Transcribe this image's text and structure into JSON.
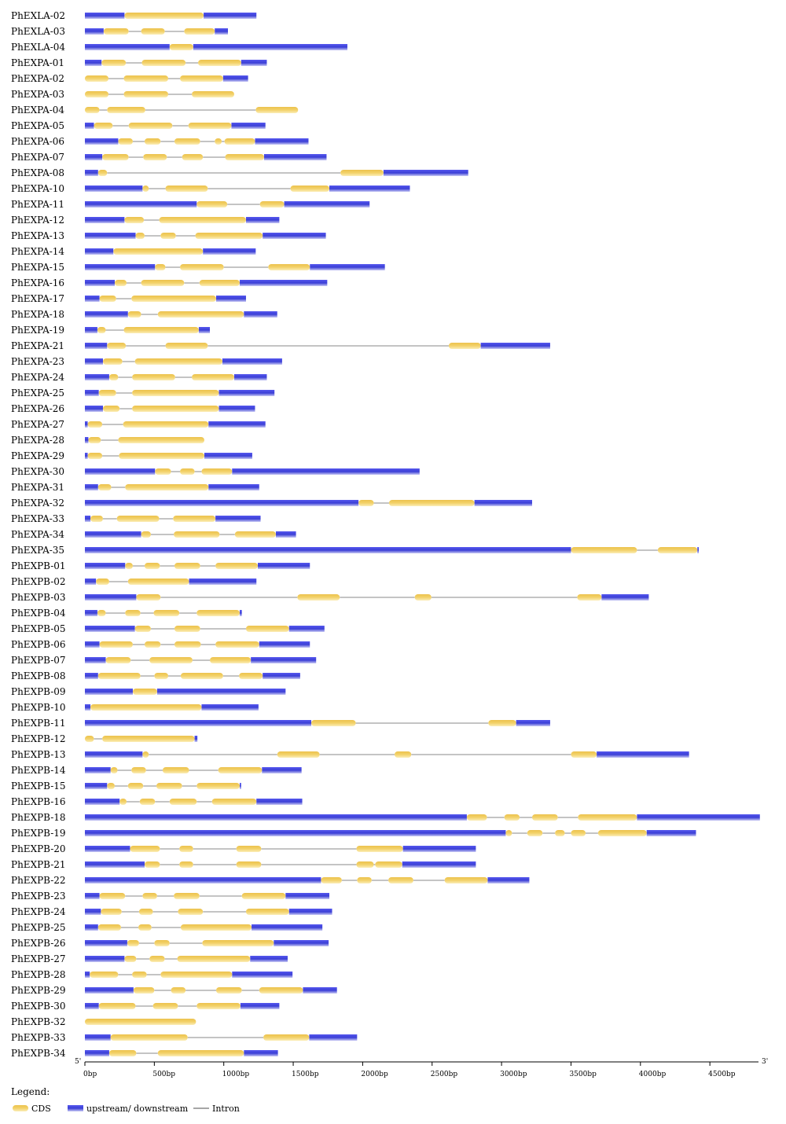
{
  "chart_data": {
    "type": "gene-structure",
    "axis": {
      "unit": "bp",
      "max": 4850,
      "ticks": [
        0,
        500,
        1000,
        1500,
        2000,
        2500,
        3000,
        3500,
        4000,
        4500
      ],
      "tick_labels": [
        "0bp",
        "500bp",
        "1000bp",
        "1500bp",
        "2000bp",
        "2500bp",
        "3000bp",
        "3500bp",
        "4000bp",
        "4500bp"
      ],
      "start_label": "5'",
      "end_label": "3'"
    },
    "legend": {
      "title": "Legend:",
      "items": [
        {
          "label": "CDS",
          "type": "cds"
        },
        {
          "label": "upstream/ downstream",
          "type": "utr"
        },
        {
          "label": "Intron",
          "type": "intron"
        }
      ]
    },
    "colors": {
      "cds": "#f3d26a",
      "utr": "#3b3fd6",
      "intron": "#888888"
    },
    "genes": [
      {
        "name": "PhEXLA-02",
        "length": 1235,
        "cds": [
          [
            285,
            855
          ]
        ]
      },
      {
        "name": "PhEXLA-03",
        "length": 1030,
        "cds": [
          [
            135,
            315
          ],
          [
            405,
            575
          ],
          [
            715,
            935
          ]
        ]
      },
      {
        "name": "PhEXLA-04",
        "length": 1890,
        "cds": [
          [
            610,
            780
          ]
        ]
      },
      {
        "name": "PhEXPA-01",
        "length": 1310,
        "cds": [
          [
            120,
            295
          ],
          [
            410,
            725
          ],
          [
            815,
            1125
          ]
        ]
      },
      {
        "name": "PhEXPA-02",
        "length": 1175,
        "cds": [
          [
            0,
            170
          ],
          [
            280,
            600
          ],
          [
            685,
            995
          ]
        ]
      },
      {
        "name": "PhEXPA-03",
        "length": 1075,
        "cds": [
          [
            0,
            170
          ],
          [
            280,
            600
          ],
          [
            770,
            1075
          ]
        ]
      },
      {
        "name": "PhEXPA-04",
        "length": 1535,
        "cds": [
          [
            0,
            105
          ],
          [
            160,
            435
          ],
          [
            1230,
            1535
          ]
        ]
      },
      {
        "name": "PhEXPA-05",
        "length": 1300,
        "cds": [
          [
            65,
            200
          ],
          [
            315,
            630
          ],
          [
            745,
            1055
          ]
        ]
      },
      {
        "name": "PhEXPA-06",
        "length": 1610,
        "cds": [
          [
            240,
            345
          ],
          [
            430,
            545
          ],
          [
            645,
            830
          ],
          [
            935,
            985
          ],
          [
            1005,
            1225
          ]
        ]
      },
      {
        "name": "PhEXPA-07",
        "length": 1740,
        "cds": [
          [
            125,
            315
          ],
          [
            420,
            590
          ],
          [
            700,
            850
          ],
          [
            1010,
            1290
          ]
        ]
      },
      {
        "name": "PhEXPA-08",
        "length": 2760,
        "cds": [
          [
            95,
            160
          ],
          [
            1840,
            2150
          ]
        ]
      },
      {
        "name": "PhEXPA-10",
        "length": 2340,
        "cds": [
          [
            415,
            460
          ],
          [
            580,
            885
          ],
          [
            1480,
            1760
          ]
        ]
      },
      {
        "name": "PhEXPA-11",
        "length": 2050,
        "cds": [
          [
            805,
            1025
          ],
          [
            1260,
            1435
          ]
        ]
      },
      {
        "name": "PhEXPA-12",
        "length": 1400,
        "cds": [
          [
            285,
            425
          ],
          [
            535,
            1160
          ]
        ]
      },
      {
        "name": "PhEXPA-13",
        "length": 1735,
        "cds": [
          [
            365,
            430
          ],
          [
            545,
            655
          ],
          [
            795,
            1280
          ]
        ]
      },
      {
        "name": "PhEXPA-14",
        "length": 1230,
        "cds": [
          [
            205,
            850
          ]
        ]
      },
      {
        "name": "PhEXPA-15",
        "length": 2160,
        "cds": [
          [
            505,
            580
          ],
          [
            685,
            1000
          ],
          [
            1320,
            1620
          ]
        ]
      },
      {
        "name": "PhEXPA-16",
        "length": 1745,
        "cds": [
          [
            215,
            300
          ],
          [
            405,
            715
          ],
          [
            825,
            1115
          ]
        ]
      },
      {
        "name": "PhEXPA-17",
        "length": 1160,
        "cds": [
          [
            105,
            225
          ],
          [
            335,
            945
          ]
        ]
      },
      {
        "name": "PhEXPA-18",
        "length": 1385,
        "cds": [
          [
            310,
            405
          ],
          [
            525,
            1145
          ]
        ]
      },
      {
        "name": "PhEXPA-19",
        "length": 900,
        "cds": [
          [
            90,
            150
          ],
          [
            280,
            820
          ]
        ]
      },
      {
        "name": "PhEXPA-21",
        "length": 3350,
        "cds": [
          [
            160,
            295
          ],
          [
            580,
            885
          ],
          [
            2620,
            2850
          ]
        ]
      },
      {
        "name": "PhEXPA-23",
        "length": 1420,
        "cds": [
          [
            130,
            270
          ],
          [
            360,
            990
          ]
        ]
      },
      {
        "name": "PhEXPA-24",
        "length": 1310,
        "cds": [
          [
            175,
            240
          ],
          [
            340,
            650
          ],
          [
            770,
            1075
          ]
        ]
      },
      {
        "name": "PhEXPA-25",
        "length": 1365,
        "cds": [
          [
            100,
            225
          ],
          [
            340,
            965
          ]
        ]
      },
      {
        "name": "PhEXPA-26",
        "length": 1225,
        "cds": [
          [
            130,
            250
          ],
          [
            340,
            965
          ]
        ]
      },
      {
        "name": "PhEXPA-27",
        "length": 1300,
        "cds": [
          [
            20,
            125
          ],
          [
            275,
            890
          ]
        ]
      },
      {
        "name": "PhEXPA-28",
        "length": 860,
        "cds": [
          [
            25,
            115
          ],
          [
            240,
            860
          ]
        ]
      },
      {
        "name": "PhEXPA-29",
        "length": 1205,
        "cds": [
          [
            20,
            125
          ],
          [
            245,
            860
          ]
        ]
      },
      {
        "name": "PhEXPA-30",
        "length": 2410,
        "cds": [
          [
            505,
            620
          ],
          [
            685,
            790
          ],
          [
            840,
            1060
          ]
        ]
      },
      {
        "name": "PhEXPA-31",
        "length": 1255,
        "cds": [
          [
            95,
            190
          ],
          [
            290,
            890
          ]
        ]
      },
      {
        "name": "PhEXPA-32",
        "length": 3220,
        "cds": [
          [
            1970,
            2080
          ],
          [
            2190,
            2805
          ]
        ]
      },
      {
        "name": "PhEXPA-33",
        "length": 1265,
        "cds": [
          [
            40,
            130
          ],
          [
            230,
            535
          ],
          [
            635,
            940
          ]
        ]
      },
      {
        "name": "PhEXPA-34",
        "length": 1520,
        "cds": [
          [
            405,
            475
          ],
          [
            640,
            970
          ],
          [
            1080,
            1375
          ]
        ]
      },
      {
        "name": "PhEXPA-35",
        "length": 4420,
        "cds": [
          [
            3500,
            3975
          ],
          [
            4125,
            4410
          ]
        ]
      },
      {
        "name": "PhEXPB-01",
        "length": 1620,
        "cds": [
          [
            290,
            345
          ],
          [
            430,
            540
          ],
          [
            645,
            830
          ],
          [
            940,
            1245
          ]
        ]
      },
      {
        "name": "PhEXPB-02",
        "length": 1235,
        "cds": [
          [
            80,
            175
          ],
          [
            310,
            750
          ]
        ]
      },
      {
        "name": "PhEXPB-03",
        "length": 4060,
        "cds": [
          [
            370,
            545
          ],
          [
            1530,
            1835
          ],
          [
            2375,
            2495
          ],
          [
            3545,
            3720
          ]
        ]
      },
      {
        "name": "PhEXPB-04",
        "length": 1130,
        "cds": [
          [
            90,
            150
          ],
          [
            290,
            400
          ],
          [
            495,
            680
          ],
          [
            805,
            1115
          ]
        ]
      },
      {
        "name": "PhEXPB-05",
        "length": 1725,
        "cds": [
          [
            360,
            475
          ],
          [
            645,
            830
          ],
          [
            1160,
            1470
          ]
        ]
      },
      {
        "name": "PhEXPB-06",
        "length": 1620,
        "cds": [
          [
            105,
            345
          ],
          [
            430,
            545
          ],
          [
            645,
            835
          ],
          [
            940,
            1255
          ]
        ]
      },
      {
        "name": "PhEXPB-07",
        "length": 1665,
        "cds": [
          [
            150,
            330
          ],
          [
            465,
            775
          ],
          [
            900,
            1195
          ]
        ]
      },
      {
        "name": "PhEXPB-08",
        "length": 1550,
        "cds": [
          [
            95,
            400
          ],
          [
            500,
            600
          ],
          [
            690,
            995
          ],
          [
            1110,
            1280
          ]
        ]
      },
      {
        "name": "PhEXPB-09",
        "length": 1445,
        "cds": [
          [
            345,
            520
          ]
        ]
      },
      {
        "name": "PhEXPB-10",
        "length": 1250,
        "cds": [
          [
            40,
            840
          ]
        ]
      },
      {
        "name": "PhEXPB-11",
        "length": 3350,
        "cds": [
          [
            1630,
            1950
          ],
          [
            2905,
            3105
          ]
        ]
      },
      {
        "name": "PhEXPB-12",
        "length": 810,
        "cds": [
          [
            0,
            65
          ],
          [
            125,
            790
          ]
        ]
      },
      {
        "name": "PhEXPB-13",
        "length": 4350,
        "cds": [
          [
            415,
            460
          ],
          [
            1385,
            1690
          ],
          [
            2230,
            2350
          ],
          [
            3500,
            3685
          ]
        ]
      },
      {
        "name": "PhEXPB-14",
        "length": 1560,
        "cds": [
          [
            185,
            235
          ],
          [
            335,
            440
          ],
          [
            560,
            750
          ],
          [
            960,
            1275
          ]
        ]
      },
      {
        "name": "PhEXPB-15",
        "length": 1125,
        "cds": [
          [
            160,
            215
          ],
          [
            310,
            420
          ],
          [
            515,
            700
          ],
          [
            805,
            1115
          ]
        ]
      },
      {
        "name": "PhEXPB-16",
        "length": 1565,
        "cds": [
          [
            250,
            300
          ],
          [
            395,
            505
          ],
          [
            610,
            805
          ],
          [
            915,
            1235
          ]
        ]
      },
      {
        "name": "PhEXPB-18",
        "length": 4860,
        "cds": [
          [
            2750,
            2895
          ],
          [
            3020,
            3130
          ],
          [
            3220,
            3405
          ],
          [
            3550,
            3975
          ]
        ]
      },
      {
        "name": "PhEXPB-19",
        "length": 4400,
        "cds": [
          [
            3030,
            3075
          ],
          [
            3185,
            3295
          ],
          [
            3385,
            3455
          ],
          [
            3500,
            3605
          ],
          [
            3695,
            4045
          ]
        ]
      },
      {
        "name": "PhEXPB-20",
        "length": 2815,
        "cds": [
          [
            325,
            540
          ],
          [
            680,
            780
          ],
          [
            1090,
            1270
          ],
          [
            1955,
            2290
          ]
        ]
      },
      {
        "name": "PhEXPB-21",
        "length": 2815,
        "cds": [
          [
            430,
            540
          ],
          [
            680,
            780
          ],
          [
            1090,
            1270
          ],
          [
            1955,
            2080
          ],
          [
            2090,
            2285
          ]
        ]
      },
      {
        "name": "PhEXPB-22",
        "length": 3200,
        "cds": [
          [
            1700,
            1850
          ],
          [
            1960,
            2065
          ],
          [
            2185,
            2365
          ],
          [
            2590,
            2900
          ]
        ]
      },
      {
        "name": "PhEXPB-23",
        "length": 1760,
        "cds": [
          [
            105,
            290
          ],
          [
            415,
            520
          ],
          [
            640,
            825
          ],
          [
            1130,
            1445
          ]
        ]
      },
      {
        "name": "PhEXPB-24",
        "length": 1780,
        "cds": [
          [
            115,
            265
          ],
          [
            390,
            490
          ],
          [
            670,
            850
          ],
          [
            1160,
            1470
          ]
        ]
      },
      {
        "name": "PhEXPB-25",
        "length": 1710,
        "cds": [
          [
            95,
            260
          ],
          [
            385,
            480
          ],
          [
            690,
            1200
          ]
        ]
      },
      {
        "name": "PhEXPB-26",
        "length": 1755,
        "cds": [
          [
            305,
            390
          ],
          [
            500,
            610
          ],
          [
            845,
            1360
          ]
        ]
      },
      {
        "name": "PhEXPB-27",
        "length": 1460,
        "cds": [
          [
            285,
            370
          ],
          [
            465,
            575
          ],
          [
            665,
            1190
          ]
        ]
      },
      {
        "name": "PhEXPB-28",
        "length": 1495,
        "cds": [
          [
            35,
            240
          ],
          [
            340,
            445
          ],
          [
            545,
            1060
          ]
        ]
      },
      {
        "name": "PhEXPB-29",
        "length": 1815,
        "cds": [
          [
            350,
            500
          ],
          [
            620,
            725
          ],
          [
            945,
            1130
          ],
          [
            1255,
            1570
          ]
        ]
      },
      {
        "name": "PhEXPB-30",
        "length": 1400,
        "cds": [
          [
            100,
            365
          ],
          [
            490,
            670
          ],
          [
            805,
            1120
          ]
        ]
      },
      {
        "name": "PhEXPB-32",
        "length": 800,
        "cds": [
          [
            0,
            800
          ]
        ]
      },
      {
        "name": "PhEXPB-33",
        "length": 1960,
        "cds": [
          [
            185,
            740
          ],
          [
            1285,
            1615
          ]
        ]
      },
      {
        "name": "PhEXPB-34",
        "length": 1390,
        "cds": [
          [
            175,
            370
          ],
          [
            525,
            1145
          ]
        ]
      }
    ]
  }
}
